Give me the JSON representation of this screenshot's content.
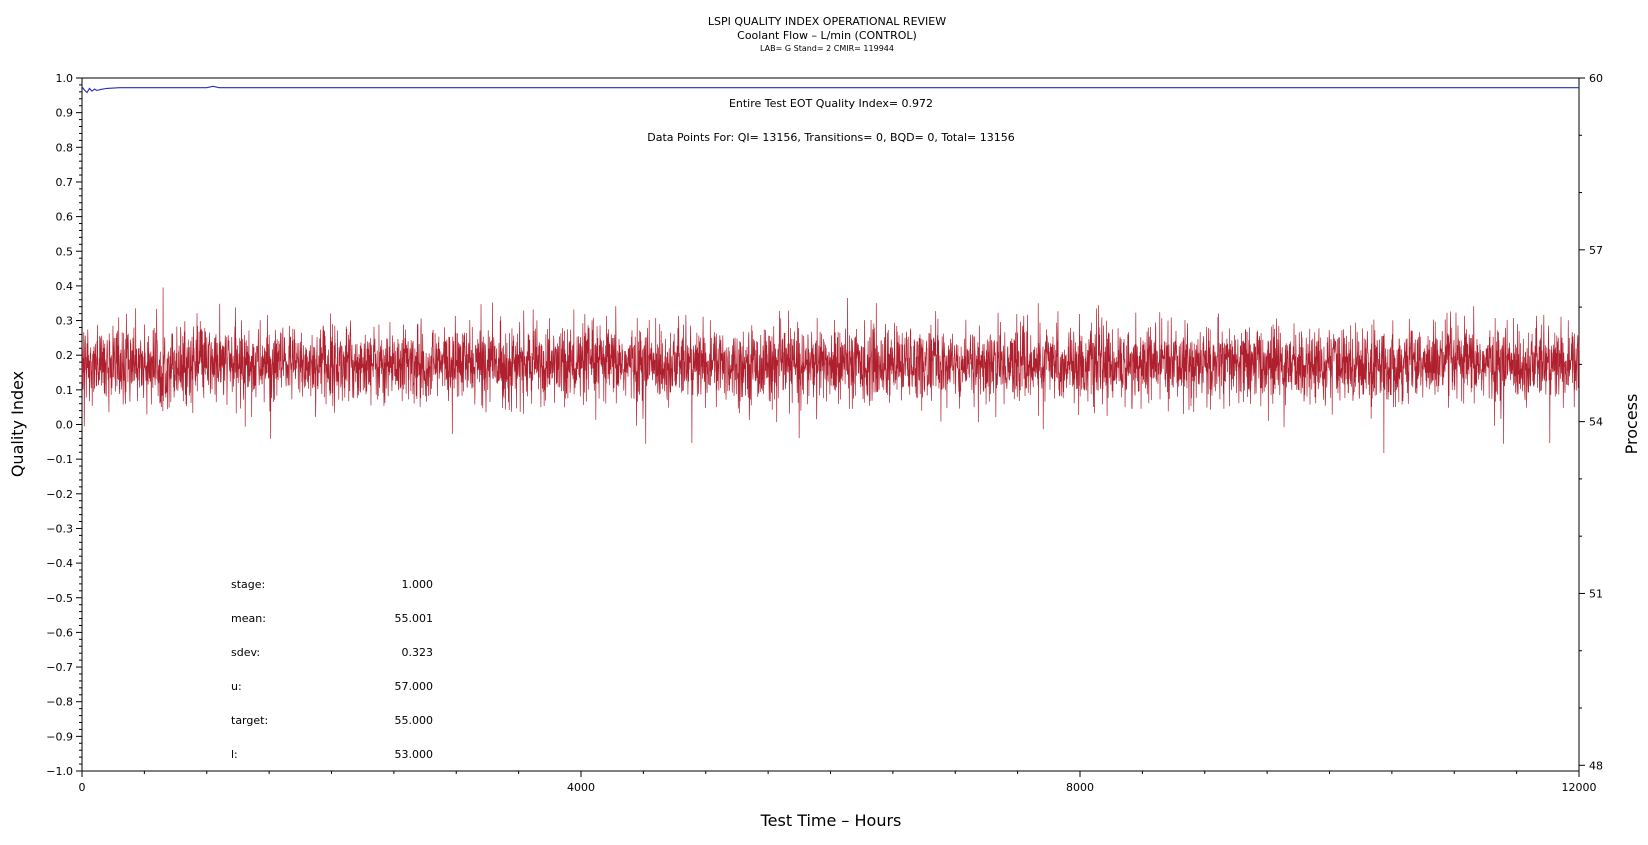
{
  "chart_data": {
    "type": "line",
    "title": "LSPI QUALITY INDEX OPERATIONAL REVIEW",
    "subtitle": "Coolant Flow – L/min (CONTROL)",
    "subtitle2": "LAB= G Stand= 2 CMIR= 119944",
    "xlabel": "Test Time – Hours",
    "ylabel": "Quality Index",
    "y2label": "Process",
    "xlim": [
      0,
      12000
    ],
    "ylim": [
      -1.0,
      1.0
    ],
    "y2lim": [
      47.9,
      60.0
    ],
    "x_ticks": [
      "0",
      "4000",
      "8000",
      "12000"
    ],
    "y_ticks": [
      "1.0",
      "0.9",
      "0.8",
      "0.7",
      "0.6",
      "0.5",
      "0.4",
      "0.3",
      "0.2",
      "0.1",
      "0.0",
      "−0.1",
      "−0.2",
      "−0.3",
      "−0.4",
      "−0.5",
      "−0.6",
      "−0.7",
      "−0.8",
      "−0.9",
      "−1.0"
    ],
    "y2_ticks": [
      "60",
      "57",
      "54",
      "51",
      "48"
    ],
    "annotation_eot": "Entire Test EOT Quality Index=   0.972",
    "annotation_points": "Data Points For: QI= 13156, Transitions=     0, BQD=     0, Total= 13156",
    "stats": [
      {
        "label": "stage:",
        "value": "1.000"
      },
      {
        "label": "mean:",
        "value": "55.001"
      },
      {
        "label": "sdev:",
        "value": "0.323"
      },
      {
        "label": "u:",
        "value": "57.000"
      },
      {
        "label": "target:",
        "value": "55.000"
      },
      {
        "label": "l:",
        "value": "53.000"
      }
    ],
    "series": [
      {
        "axis": "left",
        "color": "#2b2bb8",
        "x": [
          0,
          20,
          40,
          60,
          80,
          100,
          120,
          150,
          200,
          250,
          300,
          400,
          600,
          800,
          1000,
          1050,
          1100,
          1200,
          2000,
          4000,
          6000,
          8000,
          10000,
          12000
        ],
        "y": [
          0.975,
          0.965,
          0.958,
          0.97,
          0.962,
          0.968,
          0.964,
          0.967,
          0.97,
          0.971,
          0.972,
          0.972,
          0.972,
          0.972,
          0.972,
          0.976,
          0.972,
          0.972,
          0.972,
          0.972,
          0.972,
          0.972,
          0.972,
          0.972
        ]
      },
      {
        "axis": "right",
        "color": "#b01f2e",
        "x_range": [
          0,
          12000
        ],
        "points": 13156,
        "mean": 55.001,
        "sdev": 0.323
      }
    ]
  }
}
